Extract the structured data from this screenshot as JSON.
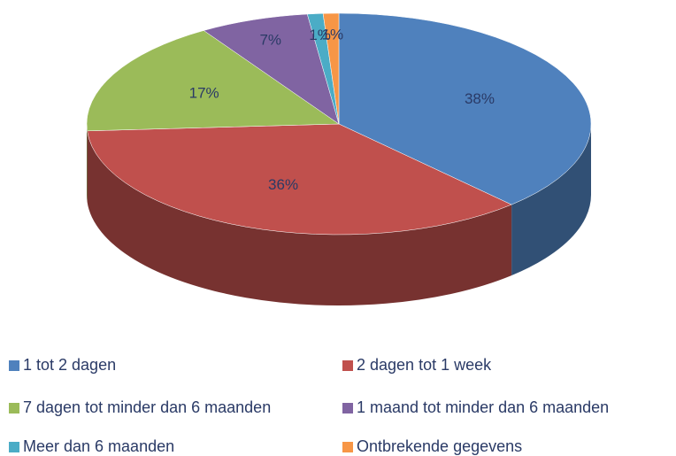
{
  "chart_data": {
    "type": "pie",
    "categories": [
      "1 tot 2 dagen",
      "2 dagen tot 1 week",
      "7 dagen tot minder dan 6 maanden",
      "1 maand tot minder dan 6 maanden",
      "Meer dan 6 maanden",
      "Ontbrekende gegevens"
    ],
    "values": [
      38,
      36,
      17,
      7,
      1,
      1
    ],
    "value_labels": [
      "38%",
      "36%",
      "17%",
      "7%",
      "1%",
      "1%"
    ],
    "colors": [
      "#4f81bd",
      "#c0504d",
      "#9bbb59",
      "#8064a2",
      "#4bacc6",
      "#f79646"
    ],
    "legend": "bottom"
  }
}
